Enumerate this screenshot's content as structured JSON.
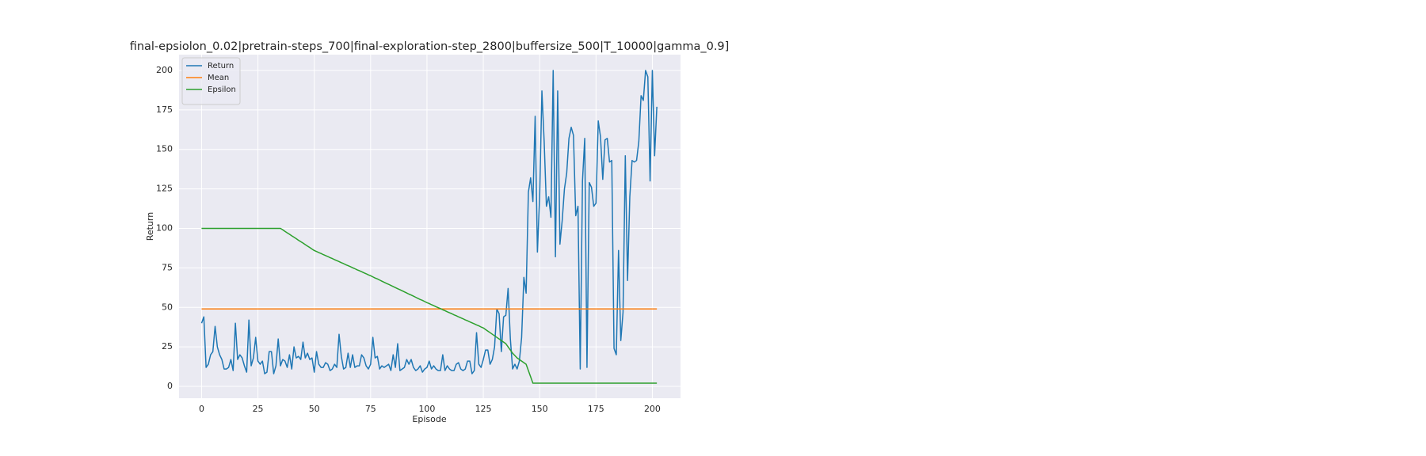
{
  "chart_data": {
    "type": "line",
    "title": "final-epsiolon_0.02|pretrain-steps_700|final-exploration-step_2800|buffersize_500|T_10000|gamma_0.9]",
    "x_label": "Episode",
    "y_label": "Return",
    "x": [
      0,
      1,
      2,
      3,
      4,
      5,
      6,
      7,
      8,
      9,
      10,
      11,
      12,
      13,
      14,
      15,
      16,
      17,
      18,
      19,
      20,
      21,
      22,
      23,
      24,
      25,
      26,
      27,
      28,
      29,
      30,
      31,
      32,
      33,
      34,
      35,
      36,
      37,
      38,
      39,
      40,
      41,
      42,
      43,
      44,
      45,
      46,
      47,
      48,
      49,
      50,
      51,
      52,
      53,
      54,
      55,
      56,
      57,
      58,
      59,
      60,
      61,
      62,
      63,
      64,
      65,
      66,
      67,
      68,
      69,
      70,
      71,
      72,
      73,
      74,
      75,
      76,
      77,
      78,
      79,
      80,
      81,
      82,
      83,
      84,
      85,
      86,
      87,
      88,
      89,
      90,
      91,
      92,
      93,
      94,
      95,
      96,
      97,
      98,
      99,
      100,
      101,
      102,
      103,
      104,
      105,
      106,
      107,
      108,
      109,
      110,
      111,
      112,
      113,
      114,
      115,
      116,
      117,
      118,
      119,
      120,
      121,
      122,
      123,
      124,
      125,
      126,
      127,
      128,
      129,
      130,
      131,
      132,
      133,
      134,
      135,
      136,
      137,
      138,
      139,
      140,
      141,
      142,
      143,
      144,
      145,
      146,
      147,
      148,
      149,
      150,
      151,
      152,
      153,
      154,
      155,
      156,
      157,
      158,
      159,
      160,
      161,
      162,
      163,
      164,
      165,
      166,
      167,
      168,
      169,
      170,
      171,
      172,
      173,
      174,
      175,
      176,
      177,
      178,
      179,
      180,
      181,
      182,
      183,
      184,
      185,
      186,
      187,
      188,
      189,
      190,
      191,
      192,
      193,
      194,
      195,
      196,
      197,
      198,
      199,
      200,
      201,
      202
    ],
    "series": [
      {
        "name": "Return",
        "color": "#1f77b4",
        "values": [
          40,
          44,
          12,
          14,
          20,
          22,
          38,
          25,
          20,
          17,
          11,
          11,
          12,
          17,
          10,
          40,
          17,
          20,
          18,
          13,
          9,
          42,
          13,
          18,
          31,
          16,
          14,
          16,
          8,
          9,
          22,
          22,
          8,
          13,
          30,
          13,
          17,
          16,
          12,
          20,
          11,
          25,
          18,
          19,
          17,
          28,
          18,
          21,
          17,
          18,
          9,
          22,
          14,
          12,
          12,
          15,
          14,
          10,
          11,
          14,
          12,
          33,
          19,
          11,
          12,
          21,
          12,
          20,
          12,
          13,
          13,
          20,
          18,
          13,
          11,
          14,
          31,
          18,
          19,
          11,
          13,
          12,
          13,
          14,
          10,
          20,
          12,
          27,
          10,
          11,
          12,
          17,
          14,
          17,
          12,
          10,
          11,
          13,
          9,
          11,
          12,
          16,
          11,
          13,
          11,
          10,
          10,
          20,
          10,
          13,
          11,
          10,
          10,
          14,
          15,
          11,
          10,
          11,
          16,
          16,
          8,
          10,
          34,
          14,
          12,
          17,
          23,
          23,
          14,
          17,
          25,
          49,
          46,
          22,
          44,
          45,
          62,
          30,
          11,
          14,
          11,
          16,
          31,
          69,
          59,
          123,
          132,
          117,
          171,
          85,
          120,
          187,
          155,
          114,
          120,
          107,
          200,
          82,
          187,
          90,
          105,
          125,
          135,
          157,
          164,
          159,
          108,
          114,
          11,
          130,
          157,
          12,
          129,
          126,
          114,
          116,
          168,
          158,
          131,
          156,
          157,
          142,
          143,
          24,
          20,
          86,
          29,
          47,
          146,
          67,
          120,
          143,
          142,
          143,
          155,
          184,
          181,
          200,
          196,
          130,
          200,
          146,
          177
        ]
      },
      {
        "name": "Mean",
        "color": "#ff7f0e",
        "values": [
          49,
          49,
          49,
          49,
          49,
          49,
          49,
          49,
          49,
          49,
          49,
          49,
          49,
          49,
          49,
          49,
          49,
          49,
          49,
          49,
          49,
          49,
          49,
          49,
          49,
          49,
          49,
          49,
          49,
          49,
          49,
          49,
          49,
          49,
          49,
          49,
          49,
          49,
          49,
          49,
          49,
          49,
          49,
          49,
          49,
          49,
          49,
          49,
          49,
          49,
          49,
          49,
          49,
          49,
          49,
          49,
          49,
          49,
          49,
          49,
          49,
          49,
          49,
          49,
          49,
          49,
          49,
          49,
          49,
          49,
          49,
          49,
          49,
          49,
          49,
          49,
          49,
          49,
          49,
          49,
          49,
          49,
          49,
          49,
          49,
          49,
          49,
          49,
          49,
          49,
          49,
          49,
          49,
          49,
          49,
          49,
          49,
          49,
          49,
          49,
          49,
          49,
          49,
          49,
          49,
          49,
          49,
          49,
          49,
          49,
          49,
          49,
          49,
          49,
          49,
          49,
          49,
          49,
          49,
          49,
          49,
          49,
          49,
          49,
          49,
          49,
          49,
          49,
          49,
          49,
          49,
          49,
          49,
          49,
          49,
          49,
          49,
          49,
          49,
          49,
          49,
          49,
          49,
          49,
          49,
          49,
          49,
          49,
          49,
          49,
          49,
          49,
          49,
          49,
          49,
          49,
          49,
          49,
          49,
          49,
          49,
          49,
          49,
          49,
          49,
          49,
          49,
          49,
          49,
          49,
          49,
          49,
          49,
          49,
          49,
          49,
          49,
          49,
          49,
          49,
          49,
          49,
          49,
          49,
          49,
          49,
          49,
          49,
          49,
          49,
          49,
          49,
          49,
          49,
          49,
          49,
          49,
          49,
          49,
          49,
          49,
          49,
          49
        ]
      },
      {
        "name": "Epsilon",
        "color": "#2ca02c",
        "values": [
          100,
          100,
          100,
          100,
          100,
          100,
          100,
          100,
          100,
          100,
          100,
          100,
          100,
          100,
          100,
          100,
          100,
          100,
          100,
          100,
          100,
          100,
          100,
          100,
          100,
          100,
          100,
          100,
          100,
          100,
          100,
          100,
          100,
          100,
          100,
          100,
          99.1,
          98.1,
          97.2,
          96.3,
          95.3,
          94.4,
          93.5,
          92.5,
          91.6,
          90.7,
          89.7,
          88.8,
          87.9,
          86.9,
          86,
          85.4,
          84.7,
          84.1,
          83.4,
          82.8,
          82.2,
          81.5,
          80.9,
          80.2,
          79.6,
          79,
          78.3,
          77.7,
          77,
          76.4,
          75.8,
          75.1,
          74.5,
          73.8,
          73.2,
          72.6,
          71.9,
          71.3,
          70.6,
          70,
          69.3,
          68.6,
          68,
          67.3,
          66.6,
          65.9,
          65.2,
          64.6,
          63.9,
          63.2,
          62.5,
          61.8,
          61.2,
          60.5,
          59.8,
          59.1,
          58.4,
          57.8,
          57.1,
          56.4,
          55.7,
          55,
          54.4,
          53.7,
          53,
          52.4,
          51.7,
          51.1,
          50.4,
          49.8,
          49.2,
          48.5,
          47.9,
          47.2,
          46.6,
          46,
          45.3,
          44.7,
          44,
          43.4,
          42.8,
          42.1,
          41.5,
          40.8,
          40.2,
          39.6,
          38.9,
          38.3,
          37.6,
          37,
          36,
          35,
          34,
          33,
          32,
          31,
          30,
          29,
          28,
          27,
          25,
          23,
          21,
          19.5,
          18,
          17,
          16,
          15,
          14,
          10,
          6,
          2,
          2,
          2,
          2,
          2,
          2,
          2,
          2,
          2,
          2,
          2,
          2,
          2,
          2,
          2,
          2,
          2,
          2,
          2,
          2,
          2,
          2,
          2,
          2,
          2,
          2,
          2,
          2,
          2,
          2,
          2,
          2,
          2,
          2,
          2,
          2,
          2,
          2,
          2,
          2,
          2,
          2,
          2,
          2,
          2,
          2,
          2,
          2,
          2,
          2,
          2,
          2,
          2,
          2,
          2,
          2
        ]
      }
    ],
    "xlim": [
      -10,
      212.5
    ],
    "ylim": [
      -7.5,
      210
    ],
    "xticks": [
      0,
      25,
      50,
      75,
      100,
      125,
      150,
      175,
      200
    ],
    "yticks": [
      0,
      25,
      50,
      75,
      100,
      125,
      150,
      175,
      200
    ],
    "grid": true,
    "legend": "upper left"
  }
}
